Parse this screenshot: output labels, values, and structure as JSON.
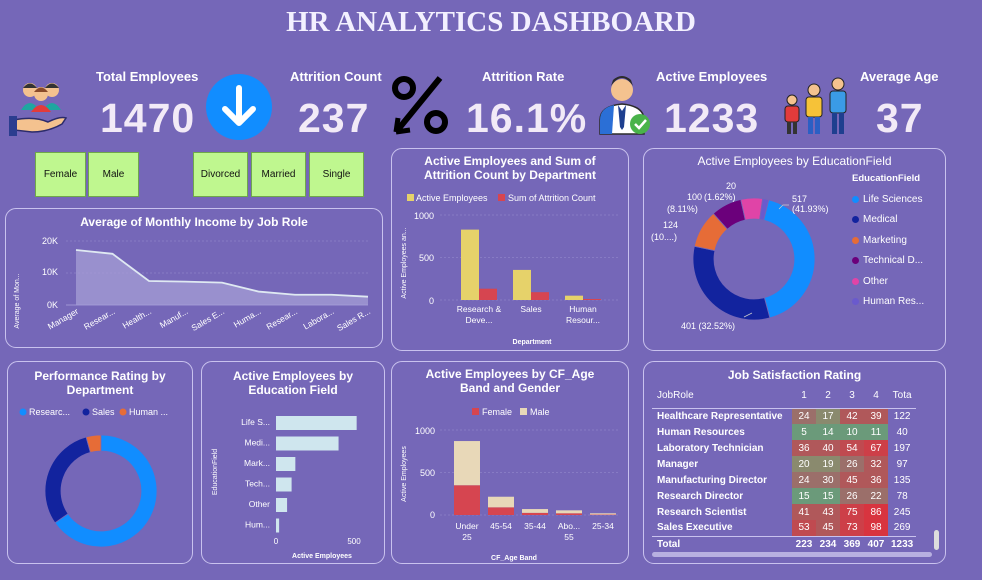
{
  "title": "HR ANALYTICS DASHBOARD",
  "kpis": {
    "total_employees": {
      "label": "Total Employees",
      "value": "1470"
    },
    "attrition_count": {
      "label": "Attrition Count",
      "value": "237"
    },
    "attrition_rate": {
      "label": "Attrition Rate",
      "value": "16.1%"
    },
    "active_employees": {
      "label": "Active Employees",
      "value": "1233"
    },
    "average_age": {
      "label": "Average Age",
      "value": "37"
    }
  },
  "slicers": {
    "gender": [
      "Female",
      "Male"
    ],
    "marital": [
      "Divorced",
      "Married",
      "Single"
    ]
  },
  "income_chart": {
    "title": "Average of Monthly Income by Job Role",
    "ylabel": "Average of Mon...",
    "yticks": [
      "20K",
      "10K",
      "0K"
    ],
    "categories": [
      "Manager",
      "Resear...",
      "Health...",
      "Manuf...",
      "Sales E...",
      "Huma...",
      "Resear...",
      "Labora...",
      "Sales R..."
    ],
    "values": [
      17200,
      16000,
      7500,
      7300,
      7000,
      4200,
      3200,
      3200,
      2600
    ],
    "ylim": [
      0,
      20000
    ]
  },
  "dept_chart": {
    "title": "Active Employees and Sum of Attrition Count by Department",
    "legend": [
      "Active Employees",
      "Sum of Attrition Count"
    ],
    "ylabel": "Active Employees an...",
    "xlabel": "Department",
    "yticks": [
      "1000",
      "500",
      "0"
    ],
    "categories": [
      "Research & Deve...",
      "Sales",
      "Human Resour..."
    ],
    "active": [
      828,
      354,
      51
    ],
    "attrition": [
      133,
      92,
      12
    ],
    "ylim": [
      0,
      1000
    ]
  },
  "edu_donut": {
    "title": "Active Employees by EducationField",
    "legend_title": "EducationField",
    "legend": [
      "Life Sciences",
      "Medical",
      "Marketing",
      "Technical D...",
      "Other",
      "Human Res..."
    ],
    "values": [
      517,
      401,
      124,
      100,
      71,
      20
    ],
    "labels": {
      "life": "517",
      "life_pct": "(41.93%)",
      "medical": "401 (32.52%)",
      "marketing": "124",
      "marketing_pct": "(10....)",
      "technical": "100",
      "technical_pct": "(8.11%)",
      "hr": "20",
      "hr_pct": "(1.62%)"
    }
  },
  "perf_donut": {
    "title": "Performance Rating by Department",
    "legend": [
      "Researc...",
      "Sales",
      "Human ..."
    ],
    "values": [
      961,
      446,
      63
    ]
  },
  "edu_bar": {
    "title": "Active Employees by Education Field",
    "ylabel": "EducationField",
    "xlabel": "Active Employees",
    "categories": [
      "Life S...",
      "Medi...",
      "Mark...",
      "Tech...",
      "Other",
      "Hum..."
    ],
    "values": [
      517,
      401,
      124,
      100,
      71,
      20
    ],
    "xticks": [
      "0",
      "500"
    ],
    "xlim": [
      0,
      550
    ]
  },
  "age_chart": {
    "title": "Active Employees by CF_Age Band and Gender",
    "legend": [
      "Female",
      "Male"
    ],
    "ylabel": "Active Employees",
    "xlabel": "CF_Age Band",
    "yticks": [
      "1000",
      "500",
      "0"
    ],
    "categories": [
      "Under 25",
      "45-54",
      "35-44",
      "Abo... 55",
      "25-34"
    ],
    "category_lines": [
      [
        "Under",
        "25"
      ],
      [
        "45-54"
      ],
      [
        "35-44"
      ],
      [
        "Abo...",
        "55"
      ],
      [
        "25-34"
      ]
    ],
    "female": [
      350,
      90,
      25,
      20,
      5
    ],
    "male": [
      520,
      125,
      45,
      35,
      15
    ],
    "ylim": [
      0,
      1000
    ]
  },
  "job_satisfaction": {
    "title": "Job Satisfaction Rating",
    "headers": [
      "JobRole",
      "1",
      "2",
      "3",
      "4",
      "Tota"
    ],
    "rows": [
      [
        "Healthcare Representative",
        "24",
        "17",
        "42",
        "39",
        "122"
      ],
      [
        "Human Resources",
        "5",
        "14",
        "10",
        "11",
        "40"
      ],
      [
        "Laboratory Technician",
        "36",
        "40",
        "54",
        "67",
        "197"
      ],
      [
        "Manager",
        "20",
        "19",
        "26",
        "32",
        "97"
      ],
      [
        "Manufacturing Director",
        "24",
        "30",
        "45",
        "36",
        "135"
      ],
      [
        "Research Director",
        "15",
        "15",
        "26",
        "22",
        "78"
      ],
      [
        "Research Scientist",
        "41",
        "43",
        "75",
        "86",
        "245"
      ],
      [
        "Sales Executive",
        "53",
        "45",
        "73",
        "98",
        "269"
      ]
    ],
    "total": [
      "Total",
      "223",
      "234",
      "369",
      "407",
      "1233"
    ]
  },
  "colors": {
    "background": "#7567b8",
    "blue": "#118dff",
    "navy": "#12239e",
    "orange": "#e66c37",
    "purple": "#6b007b",
    "pink": "#e044a7",
    "yellow": "#e6d26a",
    "red": "#d64550",
    "beige": "#e8d8b8",
    "slicer": "#bff78f"
  }
}
